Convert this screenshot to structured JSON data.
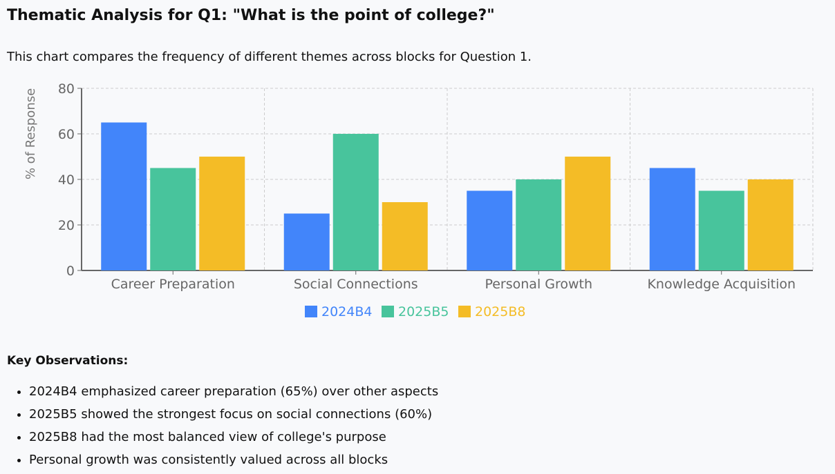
{
  "title": "Thematic Analysis for Q1: \"What is the point of college?\"",
  "description": "This chart compares the frequency of different themes across blocks for Question 1.",
  "chart_data": {
    "type": "bar",
    "categories": [
      "Career Preparation",
      "Social Connections",
      "Personal Growth",
      "Knowledge Acquisition"
    ],
    "series": [
      {
        "name": "2024B4",
        "color": "#4285fa",
        "values": [
          65,
          25,
          35,
          45
        ]
      },
      {
        "name": "2025B5",
        "color": "#48c49c",
        "values": [
          45,
          60,
          40,
          35
        ]
      },
      {
        "name": "2025B8",
        "color": "#f4bc26",
        "values": [
          50,
          30,
          50,
          40
        ]
      }
    ],
    "ylabel": "% of Response",
    "ylim": [
      0,
      80
    ],
    "yticks": [
      0,
      20,
      40,
      60,
      80
    ],
    "grid": true,
    "legend": "bottom-center"
  },
  "observations": {
    "title": "Key Observations:",
    "items": [
      "2024B4 emphasized career preparation (65%) over other aspects",
      "2025B5 showed the strongest focus on social connections (60%)",
      "2025B8 had the most balanced view of college's purpose",
      "Personal growth was consistently valued across all blocks"
    ]
  }
}
